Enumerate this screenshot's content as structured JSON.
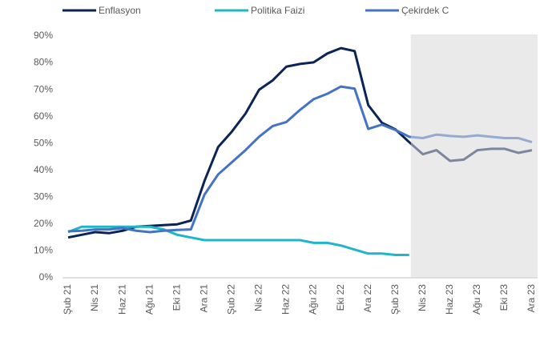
{
  "chart_data": {
    "type": "line",
    "categories": [
      "Şub 21",
      null,
      "Nis 21",
      null,
      "Haz 21",
      null,
      "Ağu 21",
      null,
      "Eki 21",
      null,
      "Ara 21",
      null,
      "Şub 22",
      null,
      "Nis 22",
      null,
      "Haz 22",
      null,
      "Ağu 22",
      null,
      "Eki 22",
      null,
      "Ara 22",
      null,
      "Şub 23",
      null,
      "Nis 23",
      null,
      "Haz 23",
      null,
      "Ağu 23",
      null,
      "Eki 23",
      null,
      "Ara 23"
    ],
    "series": [
      {
        "name": "Enflasyon",
        "color": "#0c2356",
        "values": [
          15,
          16,
          17,
          16.6,
          17.5,
          19,
          19.3,
          19.6,
          19.9,
          21.3,
          36.1,
          48.7,
          54.4,
          61.1,
          70,
          73.5,
          78.6,
          79.6,
          80.2,
          83.5,
          85.5,
          84.4,
          64.3,
          57.7,
          55.2,
          50.5,
          46,
          47.5,
          43.5,
          44,
          47.5,
          48,
          48,
          46.5,
          47.5
        ]
      },
      {
        "name": "Politika Faizi",
        "color": "#1fb6c9",
        "values": [
          17,
          19,
          19,
          19,
          19,
          19,
          19,
          18,
          16,
          15,
          14,
          14,
          14,
          14,
          14,
          14,
          14,
          14,
          13,
          13,
          12,
          10.5,
          9,
          9,
          8.5,
          8.5,
          null,
          null,
          null,
          null,
          null,
          null,
          null,
          null,
          null
        ]
      },
      {
        "name": "Çekirdek C",
        "color": "#4472c4",
        "values": [
          17.3,
          17.5,
          18,
          18,
          18.5,
          17.5,
          17,
          17.5,
          17.8,
          18,
          31,
          38.5,
          43,
          47.5,
          52.5,
          56.5,
          58,
          62.5,
          66.5,
          68.5,
          71.2,
          70.4,
          55.4,
          57,
          55,
          52.5,
          52,
          53.3,
          52.8,
          52.5,
          53,
          52.5,
          52,
          52,
          50.5
        ]
      }
    ],
    "ylim": [
      0,
      90
    ],
    "yticks": [
      {
        "value": 0,
        "label": "0%"
      },
      {
        "value": 10,
        "label": "10%"
      },
      {
        "value": 20,
        "label": "20%"
      },
      {
        "value": 30,
        "label": "30%"
      },
      {
        "value": 40,
        "label": "40%"
      },
      {
        "value": 50,
        "label": "50%"
      },
      {
        "value": 60,
        "label": "60%"
      },
      {
        "value": 70,
        "label": "70%"
      },
      {
        "value": 80,
        "label": "80%"
      },
      {
        "value": 90,
        "label": "90%"
      }
    ],
    "shade_from": 25,
    "shade_color": "#d9d9d9",
    "legend": "top"
  }
}
